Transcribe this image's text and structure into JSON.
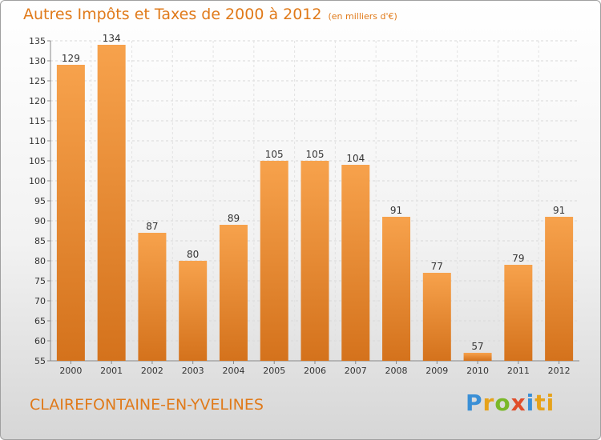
{
  "title": "Autres Impôts et Taxes de 2000 à 2012",
  "unit_note": "(en milliers d'€)",
  "city": "CLAIREFONTAINE-EN-YVELINES",
  "logo": [
    "P",
    "r",
    "o",
    "x",
    "i",
    "ti"
  ],
  "colors": {
    "bar_top": "#f7a24c",
    "bar_bottom": "#d4721c",
    "title": "#e07a1a"
  },
  "chart_data": {
    "type": "bar",
    "categories": [
      "2000",
      "2001",
      "2002",
      "2003",
      "2004",
      "2005",
      "2006",
      "2007",
      "2008",
      "2009",
      "2010",
      "2011",
      "2012"
    ],
    "values": [
      129,
      134,
      87,
      80,
      89,
      105,
      105,
      104,
      91,
      77,
      57,
      79,
      91
    ],
    "ylim": [
      55,
      135
    ],
    "yticks": [
      55,
      60,
      65,
      70,
      75,
      80,
      85,
      90,
      95,
      100,
      105,
      110,
      115,
      120,
      125,
      130,
      135
    ],
    "grid": true
  }
}
